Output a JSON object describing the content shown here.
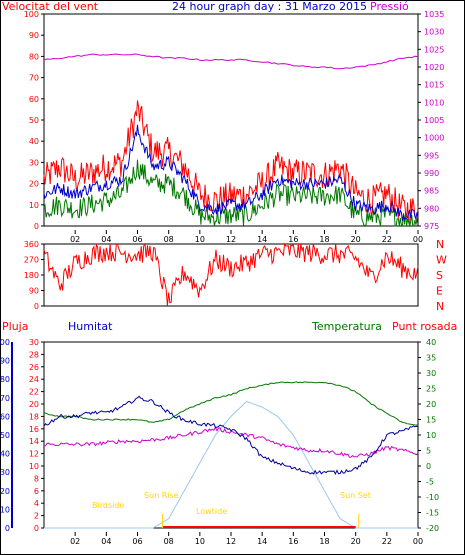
{
  "title": "24 hour graph day : 31 Marzo 2015",
  "colors": {
    "wind_speed": "#ff0000",
    "wind_avg": "#0000cc",
    "wind_min": "#007700",
    "pressure": "#cc00cc",
    "direction": "#ff0000",
    "rain": "#ff0000",
    "humidity": "#000099",
    "temperature": "#007700",
    "dewpoint": "#cc00cc",
    "solar": "#9cc8f0",
    "sun_labels": "#ffd700",
    "frame": "#000000",
    "axis_left": "#0000cc"
  },
  "x_labels": [
    "02",
    "04",
    "06",
    "08",
    "10",
    "12",
    "14",
    "16",
    "18",
    "20",
    "22",
    "00"
  ],
  "sun_events": {
    "birdside": "Birdside",
    "sunrise": "Sun Rise",
    "sun_rise_axis": "Sun Rise",
    "lowtide": "Lowtide",
    "sunset": "Sun Set"
  },
  "chart_data": [
    {
      "type": "line",
      "title": "",
      "left_label": "Velocitat del vent",
      "right_label": "Pressió",
      "ylim": [
        0,
        100
      ],
      "y2lim": [
        975,
        1035
      ],
      "yticks": [
        0,
        10,
        20,
        30,
        40,
        50,
        60,
        70,
        80,
        90,
        100
      ],
      "y2ticks": [
        975,
        980,
        985,
        990,
        995,
        1000,
        1005,
        1010,
        1015,
        1020,
        1025,
        1030,
        1035
      ],
      "x_hours": [
        0,
        1,
        2,
        3,
        4,
        5,
        6,
        7,
        8,
        9,
        10,
        11,
        12,
        13,
        14,
        15,
        16,
        17,
        18,
        19,
        20,
        21,
        22,
        23,
        24
      ],
      "series": [
        {
          "name": "Velocitat del vent",
          "values": [
            22,
            28,
            22,
            25,
            28,
            30,
            55,
            35,
            35,
            28,
            15,
            12,
            14,
            15,
            20,
            28,
            25,
            25,
            24,
            28,
            15,
            12,
            15,
            8,
            8
          ]
        },
        {
          "name": "",
          "values": [
            15,
            18,
            15,
            18,
            20,
            22,
            45,
            28,
            30,
            22,
            10,
            8,
            10,
            10,
            15,
            22,
            20,
            20,
            20,
            22,
            10,
            8,
            10,
            5,
            5
          ]
        },
        {
          "name": "",
          "values": [
            8,
            10,
            8,
            10,
            12,
            15,
            28,
            20,
            20,
            15,
            5,
            4,
            5,
            5,
            10,
            15,
            14,
            14,
            14,
            15,
            5,
            4,
            5,
            3,
            3
          ]
        },
        {
          "name": "Pressió",
          "values": [
            1022,
            1022.5,
            1023,
            1023.5,
            1023.5,
            1023.5,
            1023.5,
            1023,
            1022.5,
            1022.5,
            1022,
            1022,
            1022,
            1022,
            1021.5,
            1021,
            1020.5,
            1020,
            1020,
            1019.5,
            1020,
            1020.5,
            1021.5,
            1022.5,
            1023
          ]
        }
      ]
    },
    {
      "type": "line",
      "title": "",
      "left_ticks": [
        0,
        90,
        180,
        270,
        360
      ],
      "right_labels": [
        "N",
        "W",
        "S",
        "E",
        "N"
      ],
      "ylim": [
        0,
        360
      ],
      "x_hours": [
        0,
        1,
        2,
        3,
        4,
        5,
        6,
        7,
        8,
        9,
        10,
        11,
        12,
        13,
        14,
        15,
        16,
        17,
        18,
        19,
        20,
        21,
        22,
        23,
        24
      ],
      "series": [
        {
          "name": "",
          "values": [
            300,
            120,
            250,
            300,
            320,
            310,
            300,
            320,
            20,
            200,
            90,
            270,
            220,
            250,
            300,
            310,
            320,
            310,
            300,
            300,
            280,
            160,
            290,
            220,
            180
          ]
        }
      ]
    },
    {
      "type": "line",
      "title": "",
      "labels": {
        "rain": "Pluja",
        "humidity": "Humitat",
        "temperature": "Temperatura",
        "dewpoint": "Punt rosada"
      },
      "humidity_ticks": [
        0,
        10,
        20,
        30,
        40,
        50,
        60,
        70,
        80,
        90,
        100
      ],
      "rain_ticks": [
        0,
        2,
        4,
        6,
        8,
        10,
        12,
        14,
        16,
        18,
        20,
        22,
        24,
        26,
        28,
        30
      ],
      "temp_ticks": [
        -20,
        -15,
        -10,
        -5,
        0,
        5,
        10,
        15,
        20,
        25,
        30,
        35,
        40
      ],
      "humidity_ylim": [
        0,
        100
      ],
      "rain_ylim": [
        0,
        30
      ],
      "temp_ylim": [
        -20,
        40
      ],
      "x_hours": [
        0,
        1,
        2,
        3,
        4,
        5,
        6,
        7,
        8,
        9,
        10,
        11,
        12,
        13,
        14,
        15,
        16,
        17,
        18,
        19,
        20,
        21,
        22,
        23,
        24
      ],
      "series": [
        {
          "name": "Humitat",
          "values": [
            55,
            60,
            60,
            62,
            62,
            65,
            70,
            68,
            62,
            58,
            56,
            55,
            53,
            48,
            38,
            35,
            32,
            30,
            30,
            30,
            32,
            38,
            50,
            52,
            55
          ]
        },
        {
          "name": "Temperatura",
          "values": [
            17,
            16,
            16,
            15,
            15,
            15,
            15,
            14,
            15,
            18,
            20,
            22,
            23,
            25,
            26,
            27,
            27,
            27,
            27,
            26,
            24,
            20,
            17,
            14,
            13
          ]
        },
        {
          "name": "Punt rosada",
          "values": [
            7,
            7,
            7,
            7,
            7.5,
            8,
            8,
            8.5,
            9,
            10,
            11,
            12,
            11,
            10,
            9,
            7,
            6,
            5,
            5,
            4,
            3,
            4,
            6,
            5,
            4
          ]
        },
        {
          "name": "Pluja",
          "values": [
            0,
            0,
            0,
            0,
            0,
            0,
            0,
            0,
            0,
            0,
            0,
            0,
            0,
            0,
            0,
            0,
            0,
            0,
            0,
            0,
            0,
            0,
            0,
            0,
            0
          ]
        },
        {
          "name": "",
          "values": [
            0,
            0,
            0,
            0,
            0,
            0,
            0,
            0,
            5,
            20,
            35,
            50,
            60,
            68,
            65,
            60,
            50,
            35,
            20,
            5,
            0,
            0,
            0,
            0,
            0
          ]
        }
      ]
    }
  ]
}
